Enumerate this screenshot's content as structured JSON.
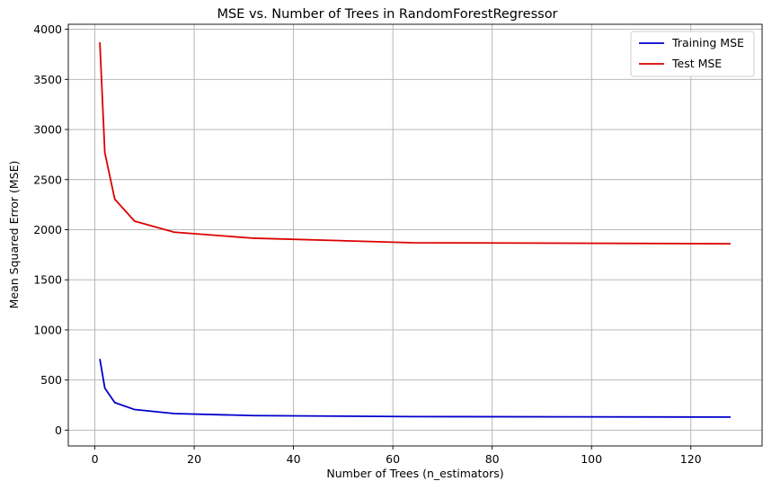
{
  "chart_data": {
    "type": "line",
    "title": "MSE vs. Number of Trees in RandomForestRegressor",
    "xlabel": "Number of Trees (n_estimators)",
    "ylabel": "Mean Squared Error (MSE)",
    "xlim": [
      -5.35,
      134.35
    ],
    "ylim": [
      -158,
      4050
    ],
    "xticks": [
      0,
      20,
      40,
      60,
      80,
      100,
      120
    ],
    "yticks": [
      0,
      500,
      1000,
      1500,
      2000,
      2500,
      3000,
      3500,
      4000
    ],
    "grid": true,
    "legend_position": "top-right",
    "x": [
      1,
      2,
      4,
      8,
      16,
      32,
      64,
      128
    ],
    "series": [
      {
        "name": "Training MSE",
        "color": "#0000cc",
        "values": [
          710,
          420,
          275,
          205,
          165,
          145,
          135,
          130
        ]
      },
      {
        "name": "Test MSE",
        "color": "#dd0000",
        "values": [
          3870,
          2770,
          2305,
          2085,
          1975,
          1915,
          1870,
          1860
        ]
      }
    ]
  }
}
